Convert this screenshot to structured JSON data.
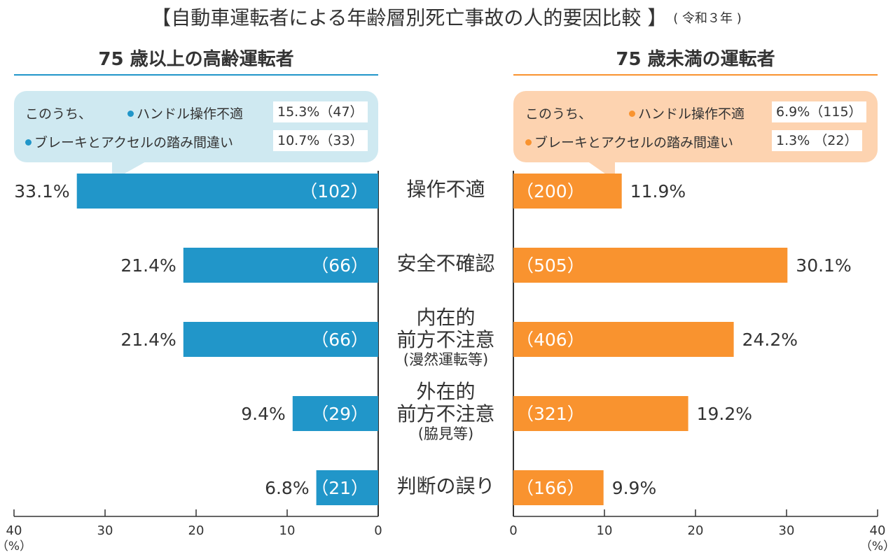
{
  "title": "【自動車運転者による年齢層別死亡事故の人的要因比較 】",
  "title_note": "( 令和３年 )",
  "left": {
    "title": "75 歳以上の高齢運転者",
    "color": "#2196c9",
    "callout": {
      "prefix": "このうち、",
      "items": [
        {
          "label": "ハンドル操作不適",
          "value": "15.3%（47）"
        },
        {
          "label": "ブレーキとアクセルの踏み間違い",
          "value": "10.7%（33）"
        }
      ]
    }
  },
  "right": {
    "title": "75 歳未満の運転者",
    "color": "#f9932f",
    "callout": {
      "prefix": "このうち、",
      "items": [
        {
          "label": "ハンドル操作不適",
          "value": "6.9%（115）"
        },
        {
          "label": "ブレーキとアクセルの踏み間違い",
          "value": "1.3% （22）"
        }
      ]
    }
  },
  "categories": [
    {
      "lines": [
        "操作不適"
      ],
      "sub": ""
    },
    {
      "lines": [
        "安全不確認"
      ],
      "sub": ""
    },
    {
      "lines": [
        "内在的",
        "前方不注意"
      ],
      "sub": "(漫然運転等)"
    },
    {
      "lines": [
        "外在的",
        "前方不注意"
      ],
      "sub": "(脇見等)"
    },
    {
      "lines": [
        "判断の誤り"
      ],
      "sub": ""
    }
  ],
  "chart_data": {
    "type": "bar",
    "categories": [
      "操作不適",
      "安全不確認",
      "内在的前方不注意(漫然運転等)",
      "外在的前方不注意(脇見等)",
      "判断の誤り"
    ],
    "series": [
      {
        "name": "75 歳以上の高齢運転者",
        "values": [
          33.1,
          21.4,
          21.4,
          9.4,
          6.8
        ],
        "labels": [
          "33.1%",
          "21.4%",
          "21.4%",
          "9.4%",
          "6.8%"
        ],
        "counts": [
          "（102）",
          "（66）",
          "（66）",
          "（29）",
          "（21）"
        ]
      },
      {
        "name": "75 歳未満の運転者",
        "values": [
          11.9,
          30.1,
          24.2,
          19.2,
          9.9
        ],
        "labels": [
          "11.9%",
          "30.1%",
          "24.2%",
          "19.2%",
          "9.9%"
        ],
        "counts": [
          "（200）",
          "（505）",
          "（406）",
          "（321）",
          "（166）"
        ]
      }
    ],
    "xlim": [
      0,
      40
    ],
    "ticks": [
      "0",
      "10",
      "20",
      "30",
      "40"
    ],
    "unit_label": "（%）"
  }
}
